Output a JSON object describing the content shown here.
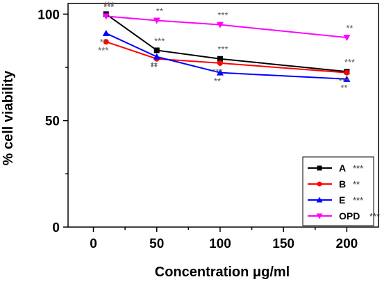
{
  "chart_data": {
    "type": "line",
    "title": "",
    "xlabel": "Concentration μg/ml",
    "ylabel": "% cell viability",
    "x": [
      10,
      50,
      100,
      200
    ],
    "xlim": [
      -20,
      225
    ],
    "ylim": [
      0,
      105
    ],
    "xticks": [
      "0",
      "50",
      "100",
      "150",
      "200"
    ],
    "yticks": [
      "0",
      "50",
      "100"
    ],
    "grid": false,
    "legend_position": "bottom-right",
    "series": [
      {
        "name": "A",
        "marker": "square",
        "color": "#000000",
        "values": [
          100,
          83,
          79,
          73
        ],
        "significance": "***",
        "point_significance": [
          "***",
          "***",
          "***",
          "***"
        ]
      },
      {
        "name": "B",
        "marker": "circle",
        "color": "#ff0000",
        "values": [
          87,
          79,
          77,
          72.5
        ],
        "significance": "**",
        "point_significance": [
          "***",
          "**",
          "***",
          "***"
        ]
      },
      {
        "name": "E",
        "marker": "triangle-up",
        "color": "#0000ff",
        "values": [
          91,
          80,
          72.5,
          69.5
        ],
        "significance": "***",
        "point_significance": [
          "**",
          "**",
          "**",
          "**"
        ]
      },
      {
        "name": "OPD",
        "marker": "triangle-down",
        "color": "#ff00ff",
        "values": [
          99,
          97,
          95,
          89
        ],
        "significance": "***",
        "point_significance": [
          "***",
          "**",
          "***",
          "**"
        ]
      }
    ]
  }
}
